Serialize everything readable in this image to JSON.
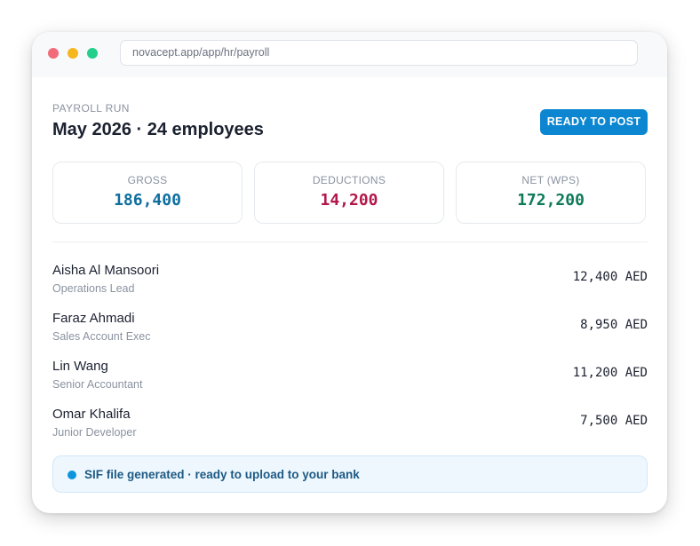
{
  "browser": {
    "url": "novacept.app/app/hr/payroll"
  },
  "header": {
    "eyebrow": "PAYROLL RUN",
    "title": "May 2026 · 24 employees",
    "status_button": "READY TO POST"
  },
  "summary": {
    "gross": {
      "label": "GROSS",
      "value": "186,400",
      "color": "#0f6e9e"
    },
    "deductions": {
      "label": "DEDUCTIONS",
      "value": "14,200",
      "color": "#b3174a"
    },
    "net": {
      "label": "NET (WPS)",
      "value": "172,200",
      "color": "#0e7a58"
    }
  },
  "employees": [
    {
      "name": "Aisha Al Mansoori",
      "role": "Operations Lead",
      "amount": "12,400 AED"
    },
    {
      "name": "Faraz Ahmadi",
      "role": "Sales Account Exec",
      "amount": "8,950 AED"
    },
    {
      "name": "Lin Wang",
      "role": "Senior Accountant",
      "amount": "11,200 AED"
    },
    {
      "name": "Omar Khalifa",
      "role": "Junior Developer",
      "amount": "7,500 AED"
    }
  ],
  "notice": {
    "text": "SIF file generated · ready to upload to your bank",
    "dot_color": "#0c95dc"
  }
}
